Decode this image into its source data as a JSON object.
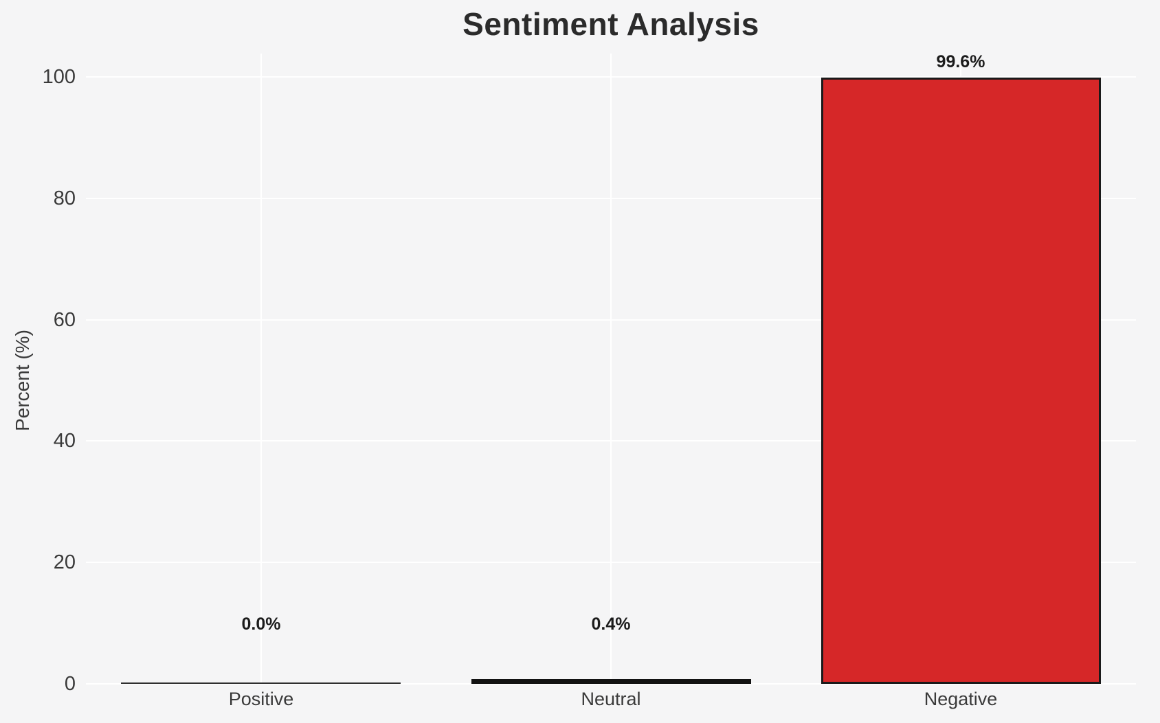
{
  "chart_data": {
    "type": "bar",
    "title": "Sentiment Analysis",
    "ylabel": "Percent (%)",
    "xlabel": "",
    "categories": [
      "Positive",
      "Neutral",
      "Negative"
    ],
    "values": [
      0.0,
      0.4,
      99.6
    ],
    "value_labels": [
      "0.0%",
      "0.4%",
      "99.6%"
    ],
    "yticks": [
      0,
      20,
      40,
      60,
      80,
      100
    ],
    "ylim": [
      0,
      103.8
    ],
    "grid": "both-x-and-y-white-gridlines",
    "legend": "none",
    "bar_width_fraction": 0.8
  },
  "colors": {
    "background": "#f5f5f6",
    "gridline": "#ffffff",
    "title_text": "#2b2b2b",
    "axis_text": "#3a3a3a",
    "value_label_text": "#1c1c1c",
    "bar_rendered_colors": [
      "#2f2f2f",
      "#121212",
      "#d62728"
    ],
    "bar_fill_negative": "#d62728",
    "bar_edge": "#1a1a1a"
  }
}
